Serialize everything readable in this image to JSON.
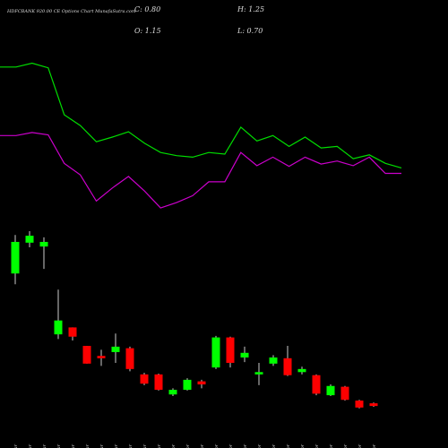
{
  "chart_data": {
    "type": "candlestick",
    "title": "HDFCBANK 920.00 CE Options Chart MunafaSutra.com",
    "header": {
      "close": "C: 0.80",
      "high": "H: 1.25",
      "open": "O: 1.15",
      "low": "L: 0.70"
    },
    "categories": [
      "16 Mar",
      "17 Mar",
      "18 Mar",
      "19 Mar",
      "20 Mar",
      "23 Mar",
      "24 Mar",
      "25 Mar",
      "26 Mar",
      "27 Mar",
      "30 Mar",
      "01 Apr",
      "02 Apr",
      "06 Apr",
      "07 Apr",
      "08 Apr",
      "09 Apr",
      "13 Apr",
      "15 Apr",
      "16 Apr",
      "17 Apr",
      "20 Apr",
      "21 Apr",
      "22 Apr",
      "23 Apr",
      "24 Apr"
    ],
    "open": [
      18.0,
      22.0,
      21.5,
      10.1,
      11.0,
      8.6,
      7.3,
      7.8,
      8.3,
      4.9,
      4.9,
      2.3,
      2.9,
      4.0,
      5.8,
      9.7,
      7.1,
      4.9,
      6.3,
      7.0,
      5.2,
      4.8,
      2.2,
      3.3,
      1.5,
      1.15
    ],
    "high": [
      23.0,
      23.5,
      22.7,
      15.9,
      11.0,
      8.6,
      8.1,
      10.2,
      8.5,
      5.1,
      5.0,
      3.1,
      4.4,
      4.2,
      9.9,
      9.8,
      8.5,
      6.4,
      7.4,
      8.6,
      5.9,
      4.9,
      3.6,
      3.4,
      1.6,
      1.25
    ],
    "low": [
      16.6,
      21.4,
      18.6,
      9.5,
      9.3,
      6.3,
      6.0,
      6.4,
      5.3,
      3.5,
      2.8,
      2.1,
      2.8,
      3.1,
      5.6,
      5.8,
      6.5,
      3.5,
      6.0,
      4.7,
      4.9,
      2.2,
      2.1,
      1.5,
      0.5,
      0.7
    ],
    "close": [
      22.1,
      22.9,
      22.1,
      11.9,
      9.8,
      6.3,
      7.0,
      8.5,
      5.6,
      3.7,
      2.9,
      2.9,
      4.2,
      3.6,
      9.7,
      6.4,
      7.7,
      5.2,
      7.1,
      4.8,
      5.6,
      2.4,
      3.4,
      1.6,
      0.6,
      0.8
    ],
    "up_color": "#00ff00",
    "down_color": "#ff0000",
    "lines": [
      {
        "color": "#00dd00",
        "values": [
          44.8,
          44.8,
          45.3,
          44.7,
          38.6,
          37.2,
          35.1,
          35.7,
          36.4,
          34.9,
          33.7,
          33.3,
          33.1,
          33.7,
          33.5,
          37.0,
          35.2,
          35.9,
          34.5,
          35.7,
          34.3,
          34.5,
          32.9,
          33.4,
          32.3,
          31.7
        ]
      },
      {
        "color": "#cc00cc",
        "values": [
          35.9,
          35.9,
          36.3,
          36.0,
          32.3,
          30.8,
          27.4,
          29.1,
          30.6,
          28.7,
          26.5,
          27.2,
          28.1,
          29.9,
          29.9,
          33.7,
          32.0,
          33.1,
          31.9,
          33.1,
          32.2,
          32.6,
          32.0,
          33.1,
          31.0,
          31.0
        ]
      }
    ],
    "ylim": [
      0,
      53.5
    ]
  }
}
